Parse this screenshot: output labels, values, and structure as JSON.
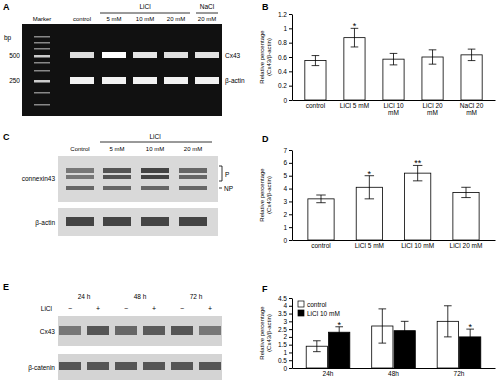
{
  "chart_data": [
    {
      "type": "bar",
      "title": "B",
      "y_label": "Relative percentage (Cx43/β-actin)",
      "categories": [
        "control",
        "LiCl 5 mM",
        "LiCl 10 mM",
        "LiCl 20 mM",
        "NaCl 20 mM"
      ],
      "values": [
        0.55,
        0.87,
        0.57,
        0.6,
        0.63
      ],
      "errors": [
        0.07,
        0.13,
        0.08,
        0.1,
        0.08
      ],
      "significance": [
        null,
        "*",
        null,
        null,
        null
      ],
      "color": "#ffffff",
      "ylim": [
        0,
        1.2
      ],
      "yticks": [
        0,
        0.2,
        0.4,
        0.6,
        0.8,
        1,
        1.2
      ],
      "grid": false
    },
    {
      "type": "bar",
      "title": "D",
      "y_label": "Relative percentage (Cx43/β-actin)",
      "categories": [
        "control",
        "LiCl 5 mM",
        "LiCl 10 mM",
        "LiCl 20 mM"
      ],
      "values": [
        3.2,
        4.1,
        5.2,
        3.7
      ],
      "errors": [
        0.3,
        0.9,
        0.6,
        0.4
      ],
      "significance": [
        null,
        "*",
        "**",
        null
      ],
      "color": "#ffffff",
      "ylim": [
        0,
        7
      ],
      "yticks": [
        0,
        1,
        2,
        3,
        4,
        5,
        6,
        7
      ],
      "grid": false
    },
    {
      "type": "bar",
      "title": "F",
      "y_label": "Relative percentage (Cx43/β-actin)",
      "categories": [
        "24h",
        "48h",
        "72h"
      ],
      "series": [
        {
          "name": "control",
          "color": "#ffffff",
          "values": [
            1.4,
            2.7,
            3.0
          ],
          "errors": [
            0.35,
            1.1,
            1.0
          ]
        },
        {
          "name": "LiCl 10 mM",
          "color": "#000000",
          "values": [
            2.3,
            2.4,
            2.0
          ],
          "errors": [
            0.35,
            0.6,
            0.5
          ],
          "significance": [
            "*",
            null,
            "*"
          ]
        }
      ],
      "legend": "top-left",
      "ylim": [
        0,
        4.5
      ],
      "yticks": [
        0,
        0.5,
        1,
        1.5,
        2,
        2.5,
        3,
        3.5,
        4,
        4.5
      ],
      "grid": false
    }
  ],
  "gels": [
    {
      "label": "A",
      "unit": "bp",
      "ladder": [
        "500",
        "250"
      ],
      "lanes": [
        "Marker",
        "control",
        "5 mM",
        "10 mM",
        "20 mM",
        "20 mM"
      ],
      "groups": [
        "LiCl",
        "NaCl"
      ],
      "bands": [
        "Cx43",
        "β-actin"
      ]
    },
    {
      "label": "C",
      "group": "LiCl",
      "lanes": [
        "Control",
        "5 mM",
        "10 mM",
        "20 mM"
      ],
      "bands": [
        "connexin43",
        "β-actin"
      ],
      "forms": [
        "P",
        "NP"
      ]
    },
    {
      "label": "E",
      "group": "LiCl",
      "times": [
        "24 h",
        "48 h",
        "72 h"
      ],
      "signs": [
        "−",
        "+"
      ],
      "bands": [
        "Cx43",
        "β-catenin"
      ]
    }
  ]
}
